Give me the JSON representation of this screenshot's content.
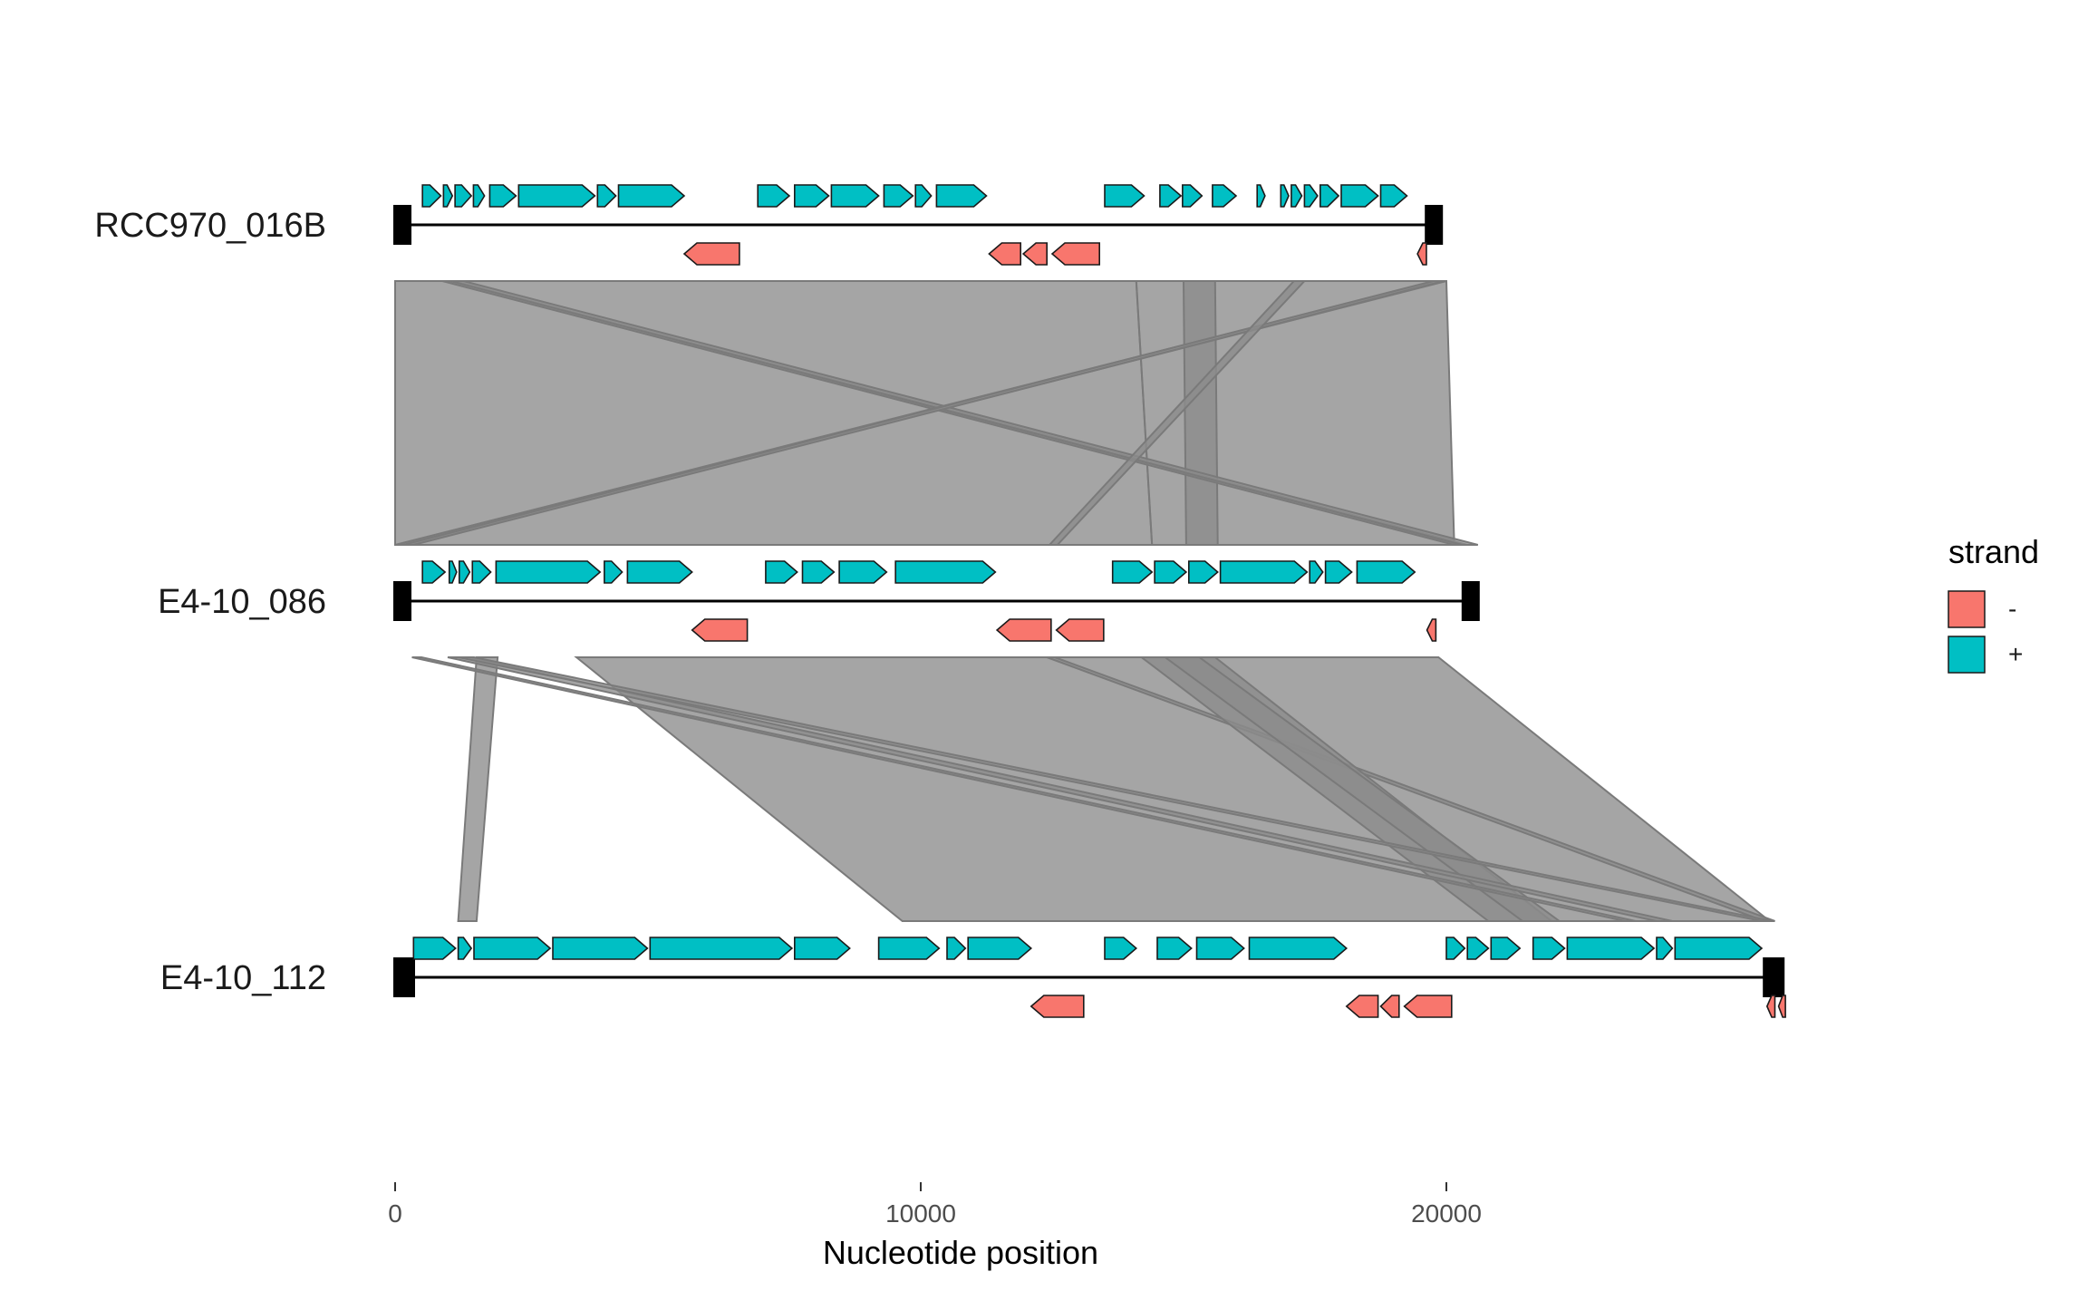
{
  "chart_data": {
    "type": "genome-comparison",
    "xlabel": "Nucleotide position",
    "x_ticks": [
      0,
      10000,
      20000
    ],
    "xlim": [
      0,
      26500
    ],
    "legend": {
      "title": "strand",
      "position": "right",
      "entries": [
        {
          "label": "-",
          "color": "#F8766D"
        },
        {
          "label": "+",
          "color": "#00BFC4"
        }
      ]
    },
    "colors": {
      "minus": "#F8766D",
      "plus": "#00BFC4",
      "comparison_fill": "#8c8c8c",
      "comparison_edge": "#7a7a7a",
      "backbone": "#000000"
    },
    "sequences": [
      {
        "name": "RCC970_016B",
        "length": 19900,
        "genes": [
          {
            "start": 520,
            "end": 870,
            "strand": "+"
          },
          {
            "start": 920,
            "end": 1090,
            "strand": "+"
          },
          {
            "start": 1140,
            "end": 1450,
            "strand": "+"
          },
          {
            "start": 1490,
            "end": 1700,
            "strand": "+"
          },
          {
            "start": 1800,
            "end": 2300,
            "strand": "+"
          },
          {
            "start": 2350,
            "end": 3800,
            "strand": "+"
          },
          {
            "start": 3850,
            "end": 4200,
            "strand": "+"
          },
          {
            "start": 4250,
            "end": 5500,
            "strand": "+"
          },
          {
            "start": 5500,
            "end": 6550,
            "strand": "-"
          },
          {
            "start": 6900,
            "end": 7500,
            "strand": "+"
          },
          {
            "start": 7600,
            "end": 8250,
            "strand": "+"
          },
          {
            "start": 8300,
            "end": 9200,
            "strand": "+"
          },
          {
            "start": 9300,
            "end": 9850,
            "strand": "+"
          },
          {
            "start": 9900,
            "end": 10200,
            "strand": "+"
          },
          {
            "start": 10300,
            "end": 11250,
            "strand": "+"
          },
          {
            "start": 11300,
            "end": 11900,
            "strand": "-"
          },
          {
            "start": 11950,
            "end": 12400,
            "strand": "-"
          },
          {
            "start": 12500,
            "end": 13400,
            "strand": "-"
          },
          {
            "start": 13500,
            "end": 14250,
            "strand": "+"
          },
          {
            "start": 14550,
            "end": 14950,
            "strand": "+"
          },
          {
            "start": 14980,
            "end": 15350,
            "strand": "+"
          },
          {
            "start": 15550,
            "end": 16000,
            "strand": "+"
          },
          {
            "start": 16400,
            "end": 16550,
            "strand": "+"
          },
          {
            "start": 16850,
            "end": 17000,
            "strand": "+"
          },
          {
            "start": 17050,
            "end": 17250,
            "strand": "+"
          },
          {
            "start": 17300,
            "end": 17550,
            "strand": "+"
          },
          {
            "start": 17600,
            "end": 17950,
            "strand": "+"
          },
          {
            "start": 18000,
            "end": 18700,
            "strand": "+"
          },
          {
            "start": 18750,
            "end": 19250,
            "strand": "+"
          },
          {
            "start": 19450,
            "end": 19620,
            "strand": "-"
          }
        ]
      },
      {
        "name": "E4-10_086",
        "length": 20600,
        "genes": [
          {
            "start": 520,
            "end": 950,
            "strand": "+"
          },
          {
            "start": 1030,
            "end": 1170,
            "strand": "+"
          },
          {
            "start": 1220,
            "end": 1420,
            "strand": "+"
          },
          {
            "start": 1470,
            "end": 1820,
            "strand": "+"
          },
          {
            "start": 1920,
            "end": 3900,
            "strand": "+"
          },
          {
            "start": 3980,
            "end": 4320,
            "strand": "+"
          },
          {
            "start": 4420,
            "end": 5650,
            "strand": "+"
          },
          {
            "start": 5650,
            "end": 6700,
            "strand": "-"
          },
          {
            "start": 7050,
            "end": 7650,
            "strand": "+"
          },
          {
            "start": 7750,
            "end": 8350,
            "strand": "+"
          },
          {
            "start": 8450,
            "end": 9350,
            "strand": "+"
          },
          {
            "start": 9520,
            "end": 11420,
            "strand": "+"
          },
          {
            "start": 11450,
            "end": 12480,
            "strand": "-"
          },
          {
            "start": 12580,
            "end": 13480,
            "strand": "-"
          },
          {
            "start": 13650,
            "end": 14400,
            "strand": "+"
          },
          {
            "start": 14450,
            "end": 15050,
            "strand": "+"
          },
          {
            "start": 15100,
            "end": 15650,
            "strand": "+"
          },
          {
            "start": 15700,
            "end": 17350,
            "strand": "+"
          },
          {
            "start": 17400,
            "end": 17650,
            "strand": "+"
          },
          {
            "start": 17700,
            "end": 18200,
            "strand": "+"
          },
          {
            "start": 18300,
            "end": 19400,
            "strand": "+"
          },
          {
            "start": 19630,
            "end": 19800,
            "strand": "-"
          }
        ]
      },
      {
        "name": "E4-10_112",
        "length": 26400,
        "genes": [
          {
            "start": 350,
            "end": 1150,
            "strand": "+"
          },
          {
            "start": 1200,
            "end": 1450,
            "strand": "+"
          },
          {
            "start": 1500,
            "end": 2950,
            "strand": "+"
          },
          {
            "start": 3000,
            "end": 4800,
            "strand": "+"
          },
          {
            "start": 4850,
            "end": 7550,
            "strand": "+"
          },
          {
            "start": 7600,
            "end": 8650,
            "strand": "+"
          },
          {
            "start": 9200,
            "end": 10350,
            "strand": "+"
          },
          {
            "start": 10500,
            "end": 10850,
            "strand": "+"
          },
          {
            "start": 10900,
            "end": 12100,
            "strand": "+"
          },
          {
            "start": 12100,
            "end": 13100,
            "strand": "-"
          },
          {
            "start": 13500,
            "end": 14100,
            "strand": "+"
          },
          {
            "start": 14500,
            "end": 15150,
            "strand": "+"
          },
          {
            "start": 15250,
            "end": 16150,
            "strand": "+"
          },
          {
            "start": 16250,
            "end": 18100,
            "strand": "+"
          },
          {
            "start": 18100,
            "end": 18700,
            "strand": "-"
          },
          {
            "start": 18750,
            "end": 19100,
            "strand": "-"
          },
          {
            "start": 19200,
            "end": 20100,
            "strand": "-"
          },
          {
            "start": 20000,
            "end": 20350,
            "strand": "+"
          },
          {
            "start": 20400,
            "end": 20800,
            "strand": "+"
          },
          {
            "start": 20850,
            "end": 21400,
            "strand": "+"
          },
          {
            "start": 21650,
            "end": 22250,
            "strand": "+"
          },
          {
            "start": 22300,
            "end": 23950,
            "strand": "+"
          },
          {
            "start": 24000,
            "end": 24300,
            "strand": "+"
          },
          {
            "start": 24350,
            "end": 26000,
            "strand": "+"
          },
          {
            "start": 26100,
            "end": 26250,
            "strand": "-"
          },
          {
            "start": 26320,
            "end": 26450,
            "strand": "-"
          }
        ]
      }
    ],
    "comparisons": [
      {
        "between": [
          0,
          1
        ],
        "blocks": [
          {
            "top": [
              0,
              14100
            ],
            "bottom": [
              0,
              14400
            ]
          },
          {
            "top": [
              14100,
              20000
            ],
            "bottom": [
              14400,
              20150
            ]
          },
          {
            "top": [
              15000,
              15600
            ],
            "bottom": [
              15050,
              15650
            ]
          },
          {
            "top": [
              900,
              1100
            ],
            "bottom": [
              20150,
              20400
            ]
          },
          {
            "top": [
              1050,
              1300
            ],
            "bottom": [
              20300,
              20600
            ]
          },
          {
            "top": [
              19800,
              20000
            ],
            "bottom": [
              0,
              250
            ]
          },
          {
            "top": [
              19750,
              19950
            ],
            "bottom": [
              150,
              350
            ]
          },
          {
            "top": [
              17100,
              17300
            ],
            "bottom": [
              12450,
              12600
            ]
          }
        ]
      },
      {
        "between": [
          1,
          2
        ],
        "blocks": [
          {
            "top": [
              3450,
              19850
            ],
            "bottom": [
              9650,
              26150
            ]
          },
          {
            "top": [
              1550,
              1950
            ],
            "bottom": [
              1200,
              1550
            ]
          },
          {
            "top": [
              12400,
              12550
            ],
            "bottom": [
              26050,
              26250
            ]
          },
          {
            "top": [
              14200,
              15600
            ],
            "bottom": [
              20800,
              22000
            ]
          },
          {
            "top": [
              14650,
              15300
            ],
            "bottom": [
              21450,
              22150
            ]
          },
          {
            "top": [
              320,
              500
            ],
            "bottom": [
              23400,
              23600
            ]
          },
          {
            "top": [
              1000,
              1400
            ],
            "bottom": [
              24000,
              24300
            ]
          },
          {
            "top": [
              1200,
              1500
            ],
            "bottom": [
              26000,
              26200
            ]
          }
        ]
      }
    ]
  }
}
